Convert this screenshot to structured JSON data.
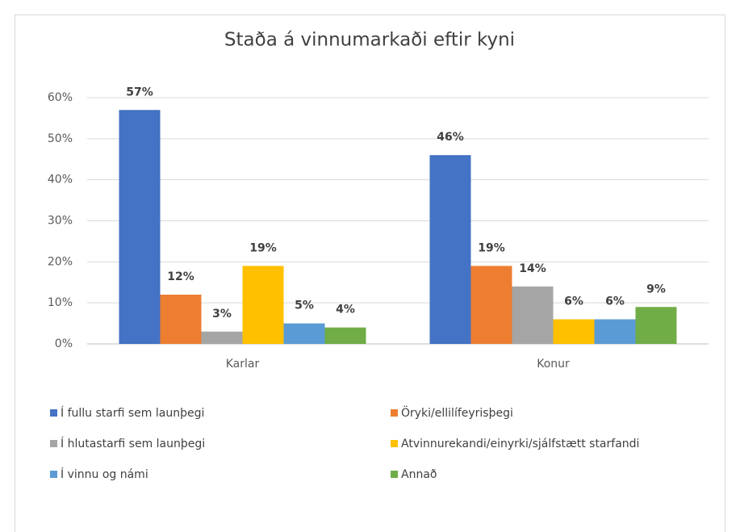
{
  "chart_data": {
    "type": "bar",
    "title": "Staða á vinnumarkaði eftir kyni",
    "categories": [
      "Karlar",
      "Konur"
    ],
    "series": [
      {
        "name": "Í fullu starfi sem launþegi",
        "color": "#4472c4",
        "values": [
          57,
          46
        ],
        "value_labels": [
          "57%",
          "46%"
        ]
      },
      {
        "name": "Öryki/ellilífeyrisþegi",
        "color": "#ed7d31",
        "values": [
          12,
          19
        ],
        "value_labels": [
          "12%",
          "19%"
        ]
      },
      {
        "name": "Í hlutastarfi sem launþegi",
        "color": "#a5a5a5",
        "values": [
          3,
          14
        ],
        "value_labels": [
          "3%",
          "14%"
        ]
      },
      {
        "name": "Atvinnurekandi/einyrki/sjálfstætt starfandi",
        "color": "#ffc000",
        "values": [
          19,
          6
        ],
        "value_labels": [
          "19%",
          "6%"
        ]
      },
      {
        "name": "Í vinnu og námi",
        "color": "#5b9bd5",
        "values": [
          5,
          6
        ],
        "value_labels": [
          "5%",
          "6%"
        ]
      },
      {
        "name": "Annað",
        "color": "#70ad47",
        "values": [
          4,
          9
        ],
        "value_labels": [
          "4%",
          "9%"
        ]
      }
    ],
    "ylim": [
      0,
      60
    ],
    "yticks": [
      {
        "value": 0,
        "label": "0%"
      },
      {
        "value": 10,
        "label": "10%"
      },
      {
        "value": 20,
        "label": "20%"
      },
      {
        "value": 30,
        "label": "30%"
      },
      {
        "value": 40,
        "label": "40%"
      },
      {
        "value": 50,
        "label": "50%"
      },
      {
        "value": 60,
        "label": "60%"
      }
    ],
    "grid": true,
    "legend": "bottom"
  }
}
